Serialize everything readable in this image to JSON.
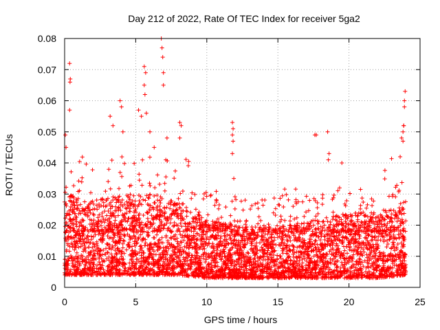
{
  "chart_data": {
    "type": "scatter",
    "title": "Day 212 of 2022, Rate Of TEC Index for receiver 5ga2",
    "xlabel": "GPS time / hours",
    "ylabel": "ROTI / TECUs",
    "xlim": [
      0,
      25
    ],
    "ylim": [
      0,
      0.08
    ],
    "x_ticks": [
      0,
      5,
      10,
      15,
      20,
      25
    ],
    "y_ticks": [
      0,
      0.01,
      0.02,
      0.03,
      0.04,
      0.05,
      0.06,
      0.07,
      0.08
    ],
    "x_tick_labels": [
      "0",
      "5",
      "10",
      "15",
      "20",
      "25"
    ],
    "y_tick_labels": [
      "0",
      "0.01",
      "0.02",
      "0.03",
      "0.04",
      "0.05",
      "0.06",
      "0.07",
      "0.08"
    ],
    "grid": true,
    "marker": "+",
    "color": "#ff0000",
    "series": [
      {
        "name": "ROTI",
        "note": "dense band of points between roughly 0.003 and 0.03 TECU/s across 0-24 h; notable outliers listed",
        "band_lower_upper_by_hour": [
          {
            "hour": 0,
            "low": 0.004,
            "high": 0.03
          },
          {
            "hour": 2,
            "low": 0.004,
            "high": 0.028
          },
          {
            "hour": 4,
            "low": 0.004,
            "high": 0.03
          },
          {
            "hour": 6,
            "low": 0.004,
            "high": 0.03
          },
          {
            "hour": 8,
            "low": 0.004,
            "high": 0.028
          },
          {
            "hour": 10,
            "low": 0.003,
            "high": 0.022
          },
          {
            "hour": 12,
            "low": 0.003,
            "high": 0.02
          },
          {
            "hour": 14,
            "low": 0.003,
            "high": 0.019
          },
          {
            "hour": 16,
            "low": 0.003,
            "high": 0.02
          },
          {
            "hour": 18,
            "low": 0.003,
            "high": 0.022
          },
          {
            "hour": 20,
            "low": 0.003,
            "high": 0.024
          },
          {
            "hour": 22,
            "low": 0.003,
            "high": 0.024
          },
          {
            "hour": 24,
            "low": 0.004,
            "high": 0.028
          }
        ],
        "outliers": [
          {
            "x": 0.35,
            "y": 0.072
          },
          {
            "x": 0.4,
            "y": 0.067
          },
          {
            "x": 0.38,
            "y": 0.066
          },
          {
            "x": 0.35,
            "y": 0.057
          },
          {
            "x": 0.05,
            "y": 0.049
          },
          {
            "x": 0.1,
            "y": 0.045
          },
          {
            "x": 3.2,
            "y": 0.055
          },
          {
            "x": 3.4,
            "y": 0.052
          },
          {
            "x": 3.9,
            "y": 0.06
          },
          {
            "x": 4.0,
            "y": 0.058
          },
          {
            "x": 4.1,
            "y": 0.05
          },
          {
            "x": 5.2,
            "y": 0.057
          },
          {
            "x": 5.4,
            "y": 0.055
          },
          {
            "x": 5.6,
            "y": 0.071
          },
          {
            "x": 5.7,
            "y": 0.069
          },
          {
            "x": 5.6,
            "y": 0.065
          },
          {
            "x": 5.65,
            "y": 0.062
          },
          {
            "x": 5.75,
            "y": 0.056
          },
          {
            "x": 6.0,
            "y": 0.05
          },
          {
            "x": 6.3,
            "y": 0.045
          },
          {
            "x": 6.8,
            "y": 0.08
          },
          {
            "x": 6.85,
            "y": 0.077
          },
          {
            "x": 6.9,
            "y": 0.074
          },
          {
            "x": 6.95,
            "y": 0.069
          },
          {
            "x": 6.95,
            "y": 0.065
          },
          {
            "x": 7.2,
            "y": 0.048
          },
          {
            "x": 8.1,
            "y": 0.053
          },
          {
            "x": 8.2,
            "y": 0.052
          },
          {
            "x": 8.1,
            "y": 0.048
          },
          {
            "x": 11.8,
            "y": 0.053
          },
          {
            "x": 11.85,
            "y": 0.051
          },
          {
            "x": 11.8,
            "y": 0.049
          },
          {
            "x": 11.85,
            "y": 0.047
          },
          {
            "x": 11.8,
            "y": 0.043
          },
          {
            "x": 11.9,
            "y": 0.035
          },
          {
            "x": 17.6,
            "y": 0.049
          },
          {
            "x": 17.7,
            "y": 0.049
          },
          {
            "x": 18.5,
            "y": 0.05
          },
          {
            "x": 18.6,
            "y": 0.043
          },
          {
            "x": 18.55,
            "y": 0.041
          },
          {
            "x": 19.5,
            "y": 0.04
          },
          {
            "x": 23.6,
            "y": 0.042
          },
          {
            "x": 23.7,
            "y": 0.048
          },
          {
            "x": 23.8,
            "y": 0.05
          },
          {
            "x": 23.85,
            "y": 0.052
          },
          {
            "x": 23.9,
            "y": 0.058
          },
          {
            "x": 23.9,
            "y": 0.06
          },
          {
            "x": 23.95,
            "y": 0.063
          },
          {
            "x": 23.85,
            "y": 0.052
          },
          {
            "x": 23.8,
            "y": 0.047
          }
        ]
      }
    ]
  }
}
